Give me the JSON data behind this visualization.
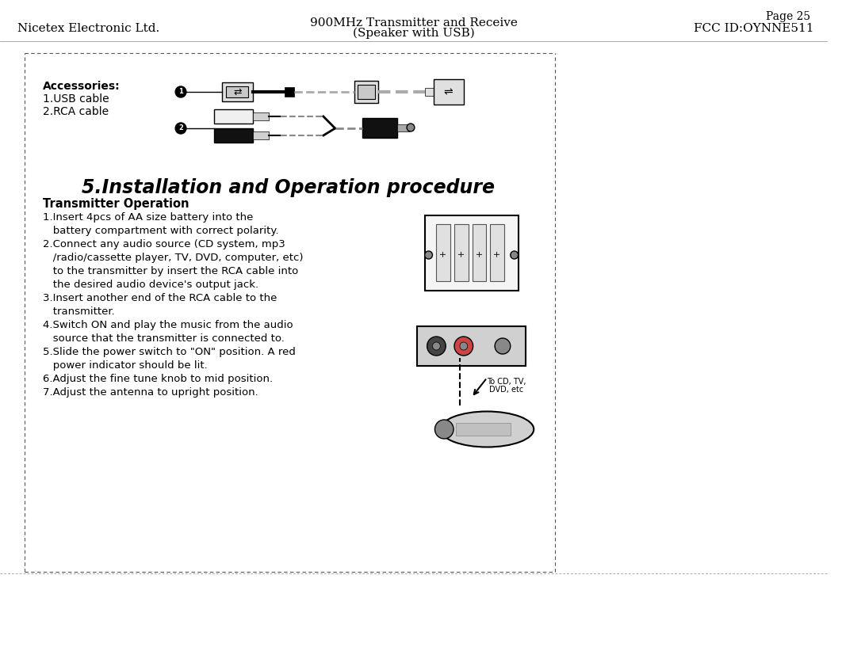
{
  "page_number": "Page 25",
  "company": "Nicetex Electronic Ltd.",
  "product_title_line1": "900MHz Transmitter and Receive",
  "product_title_line2": "(Speaker with USB)",
  "fcc_id": "FCC ID:OYNNE511",
  "section_title": "5.Installation and Operation procedure",
  "accessories_label": "Accessories:",
  "accessories_items": [
    "1.USB cable",
    "2.RCA cable"
  ],
  "transmitter_header": "Transmitter Operation",
  "transmitter_steps": [
    "1.Insert 4pcs of AA size battery into the\n   battery compartment with correct polarity.",
    "2.Connect any audio source (CD system, mp3\n   /radio/cassette player, TV, DVD, computer, etc)\n   to the transmitter by insert the RCA cable into\n   the desired audio device's output jack.",
    "3.Insert another end of the RCA cable to the\n   transmitter.",
    "4.Switch ON and play the music from the audio\n   source that the transmitter is connected to.",
    "5.Slide the power switch to \"ON\" position. A red\n   power indicator should be lit.",
    "6.Adjust the fine tune knob to mid position.",
    "7.Adjust the antenna to upright position."
  ],
  "bg_color": "#ffffff",
  "border_color": "#000000",
  "text_color": "#000000",
  "header_bg": "#ffffff"
}
